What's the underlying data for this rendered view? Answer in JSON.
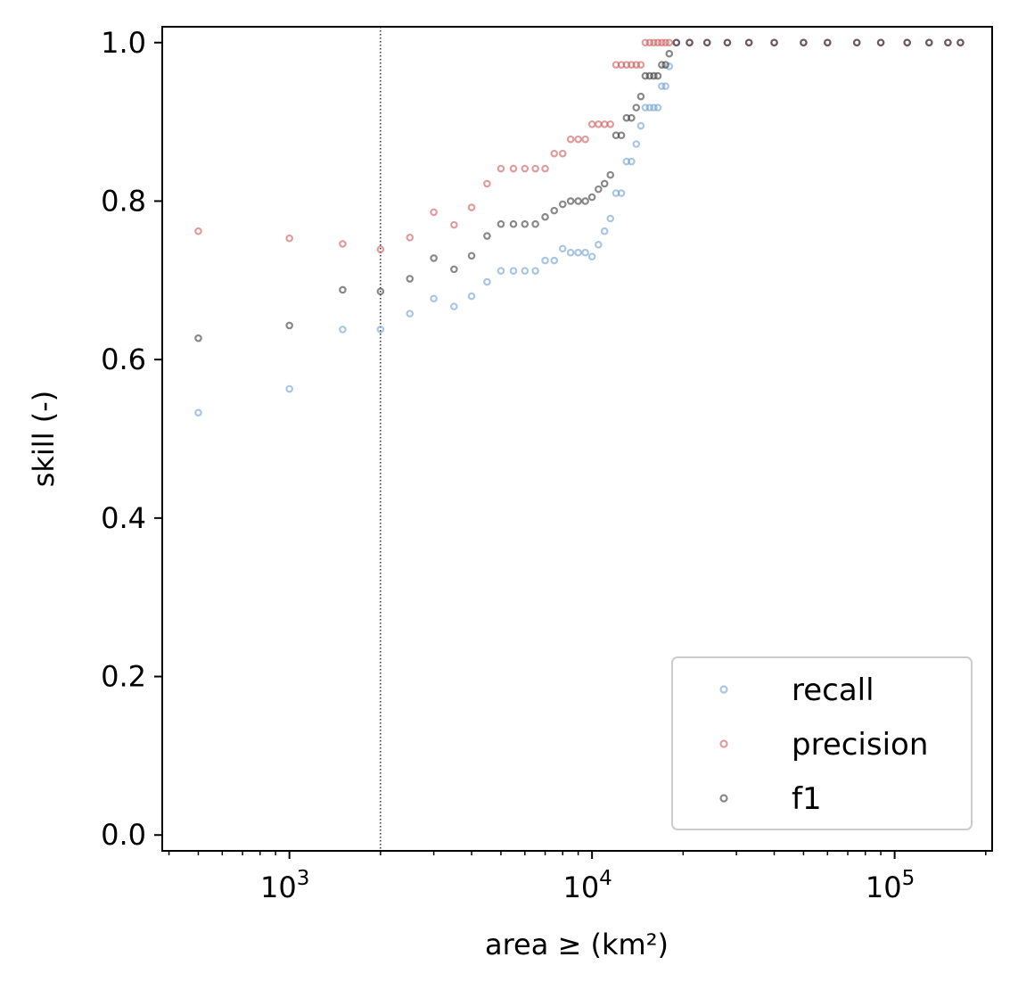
{
  "chart_data": {
    "type": "scatter",
    "title": "",
    "xlabel": "area ≥ (km²)",
    "ylabel": "skill (-)",
    "xscale": "log",
    "xlim": [
      380,
      210000
    ],
    "ylim": [
      -0.02,
      1.02
    ],
    "x_ticks": [
      {
        "value": 1000,
        "base": "10",
        "exp": "3"
      },
      {
        "value": 10000,
        "base": "10",
        "exp": "4"
      },
      {
        "value": 100000,
        "base": "10",
        "exp": "5"
      }
    ],
    "y_ticks": [
      {
        "value": 0.0,
        "label": "0.0"
      },
      {
        "value": 0.2,
        "label": "0.2"
      },
      {
        "value": 0.4,
        "label": "0.4"
      },
      {
        "value": 0.6,
        "label": "0.6"
      },
      {
        "value": 0.8,
        "label": "0.8"
      },
      {
        "value": 1.0,
        "label": "1.0"
      }
    ],
    "vline": {
      "x": 2000,
      "style": "dotted",
      "color": "#000000"
    },
    "grid": false,
    "legend_position": "bottom-right",
    "x": [
      500,
      1000,
      1500,
      2000,
      2500,
      3000,
      3500,
      4000,
      4500,
      5000,
      5500,
      6000,
      6500,
      7000,
      7500,
      8000,
      8500,
      9000,
      9500,
      10000,
      10500,
      11000,
      11500,
      12000,
      12500,
      13000,
      13500,
      14000,
      14500,
      15000,
      15500,
      16000,
      16500,
      17000,
      17500,
      18000,
      19000,
      21000,
      24000,
      28000,
      33000,
      40000,
      50000,
      60000,
      75000,
      90000,
      110000,
      130000,
      150000,
      165000
    ],
    "series": [
      {
        "name": "recall",
        "color": "#6fa2d2",
        "values": [
          0.533,
          0.563,
          0.638,
          0.638,
          0.658,
          0.677,
          0.667,
          0.68,
          0.698,
          0.712,
          0.712,
          0.712,
          0.712,
          0.725,
          0.725,
          0.74,
          0.735,
          0.735,
          0.735,
          0.73,
          0.745,
          0.762,
          0.778,
          0.81,
          0.81,
          0.85,
          0.85,
          0.872,
          0.895,
          0.918,
          0.918,
          0.918,
          0.918,
          0.945,
          0.945,
          0.97,
          1.0,
          1.0,
          1.0,
          1.0,
          1.0,
          1.0,
          1.0,
          1.0,
          1.0,
          1.0,
          1.0,
          1.0,
          1.0,
          1.0
        ]
      },
      {
        "name": "precision",
        "color": "#cd5c5c",
        "values": [
          0.762,
          0.753,
          0.746,
          0.739,
          0.754,
          0.786,
          0.77,
          0.792,
          0.822,
          0.841,
          0.841,
          0.841,
          0.841,
          0.841,
          0.86,
          0.86,
          0.878,
          0.878,
          0.878,
          0.897,
          0.897,
          0.897,
          0.897,
          0.972,
          0.972,
          0.972,
          0.972,
          0.972,
          0.972,
          1.0,
          1.0,
          1.0,
          1.0,
          1.0,
          1.0,
          1.0,
          1.0,
          1.0,
          1.0,
          1.0,
          1.0,
          1.0,
          1.0,
          1.0,
          1.0,
          1.0,
          1.0,
          1.0,
          1.0,
          1.0
        ]
      },
      {
        "name": "f1",
        "color": "#3a3a3a",
        "values": [
          0.627,
          0.643,
          0.688,
          0.686,
          0.702,
          0.728,
          0.714,
          0.731,
          0.756,
          0.771,
          0.771,
          0.771,
          0.771,
          0.78,
          0.788,
          0.796,
          0.8,
          0.8,
          0.8,
          0.805,
          0.815,
          0.822,
          0.833,
          0.883,
          0.883,
          0.905,
          0.905,
          0.918,
          0.932,
          0.958,
          0.958,
          0.958,
          0.958,
          0.972,
          0.972,
          0.986,
          1.0,
          1.0,
          1.0,
          1.0,
          1.0,
          1.0,
          1.0,
          1.0,
          1.0,
          1.0,
          1.0,
          1.0,
          1.0,
          1.0
        ]
      }
    ]
  }
}
